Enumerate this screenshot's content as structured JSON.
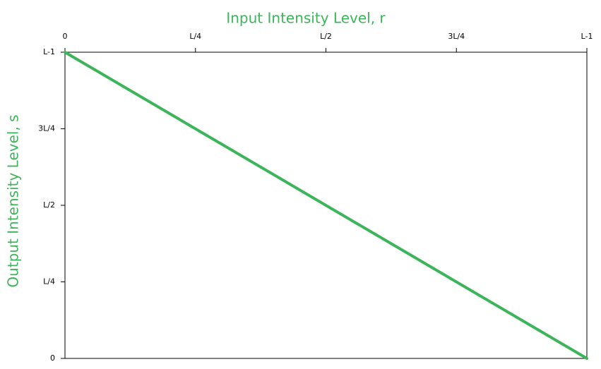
{
  "chart_data": {
    "type": "line",
    "title": "Input Intensity Level, r",
    "y_label": "Output Intensity Level, s",
    "x": [
      0,
      1
    ],
    "values": [
      1,
      0
    ],
    "color": "#3cb55a",
    "xlim": [
      0,
      1
    ],
    "ylim": [
      0,
      1
    ],
    "xticks": [
      0,
      {
        "value": 0.25,
        "label": "L/4"
      },
      {
        "value": 0.5,
        "label": "L/2"
      },
      {
        "value": 0.75,
        "label": "3L/4"
      },
      {
        "value": 1,
        "label": "L-1"
      }
    ],
    "yticks": [
      0,
      {
        "value": 0.25,
        "label": "L/4"
      },
      {
        "value": 0.5,
        "label": "L/2"
      },
      {
        "value": 0.75,
        "label": "3L/4"
      },
      {
        "value": 1,
        "label": "L-1"
      }
    ]
  }
}
